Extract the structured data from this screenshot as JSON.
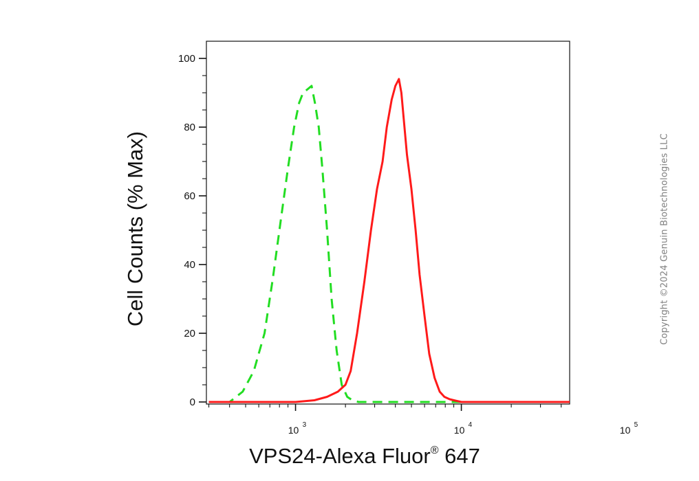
{
  "chart_data": {
    "type": "line",
    "title": "",
    "xlabel": "VPS24-Alexa Fluor",
    "xlabel_mark": "®",
    "xlabel_suffix": " 647",
    "ylabel": "Cell Counts (% Max)",
    "x_scale": "log",
    "xlim": [
      290,
      45000
    ],
    "ylim": [
      0,
      100
    ],
    "y_ticks": [
      0,
      20,
      40,
      60,
      80,
      100
    ],
    "x_major_ticks": [
      {
        "value": 1000,
        "base": "10",
        "exp": "3"
      },
      {
        "value": 10000,
        "base": "10",
        "exp": "4"
      },
      {
        "value": 100000,
        "base": "10",
        "exp": "5"
      }
    ],
    "grid": false,
    "legend": "none",
    "series": [
      {
        "color": "#22dd22",
        "line_style": "dashed",
        "x": [
          300,
          400,
          480,
          560,
          650,
          730,
          810,
          900,
          980,
          1050,
          1110,
          1180,
          1250,
          1310,
          1380,
          1450,
          1550,
          1650,
          1770,
          1900,
          2050,
          2200,
          2400,
          3000,
          5000,
          10000,
          20000,
          45000
        ],
        "y": [
          0,
          0,
          3,
          9,
          20,
          36,
          52,
          68,
          80,
          87,
          90,
          91,
          92,
          87,
          80,
          68,
          50,
          30,
          15,
          5,
          1.5,
          0.5,
          0,
          0,
          0,
          0,
          0,
          0
        ]
      },
      {
        "color": "#ff1a1a",
        "line_style": "solid",
        "x": [
          300,
          1000,
          1300,
          1550,
          1800,
          2000,
          2150,
          2350,
          2600,
          2850,
          3100,
          3350,
          3550,
          3800,
          4000,
          4200,
          4350,
          4500,
          4700,
          5000,
          5300,
          5600,
          6000,
          6400,
          6900,
          7400,
          7900,
          8500,
          9200,
          10000,
          11000,
          13000,
          20000,
          45000
        ],
        "y": [
          0,
          0,
          0.5,
          1.5,
          3,
          5,
          9,
          20,
          35,
          50,
          62,
          70,
          80,
          88,
          92,
          94,
          90,
          82,
          72,
          62,
          50,
          37,
          25,
          14,
          7,
          3,
          1.5,
          0.8,
          0.4,
          0,
          0,
          0,
          0,
          0
        ]
      }
    ]
  },
  "copyright": "Copyright ©2024 Genuin Biotechnologies LLC"
}
